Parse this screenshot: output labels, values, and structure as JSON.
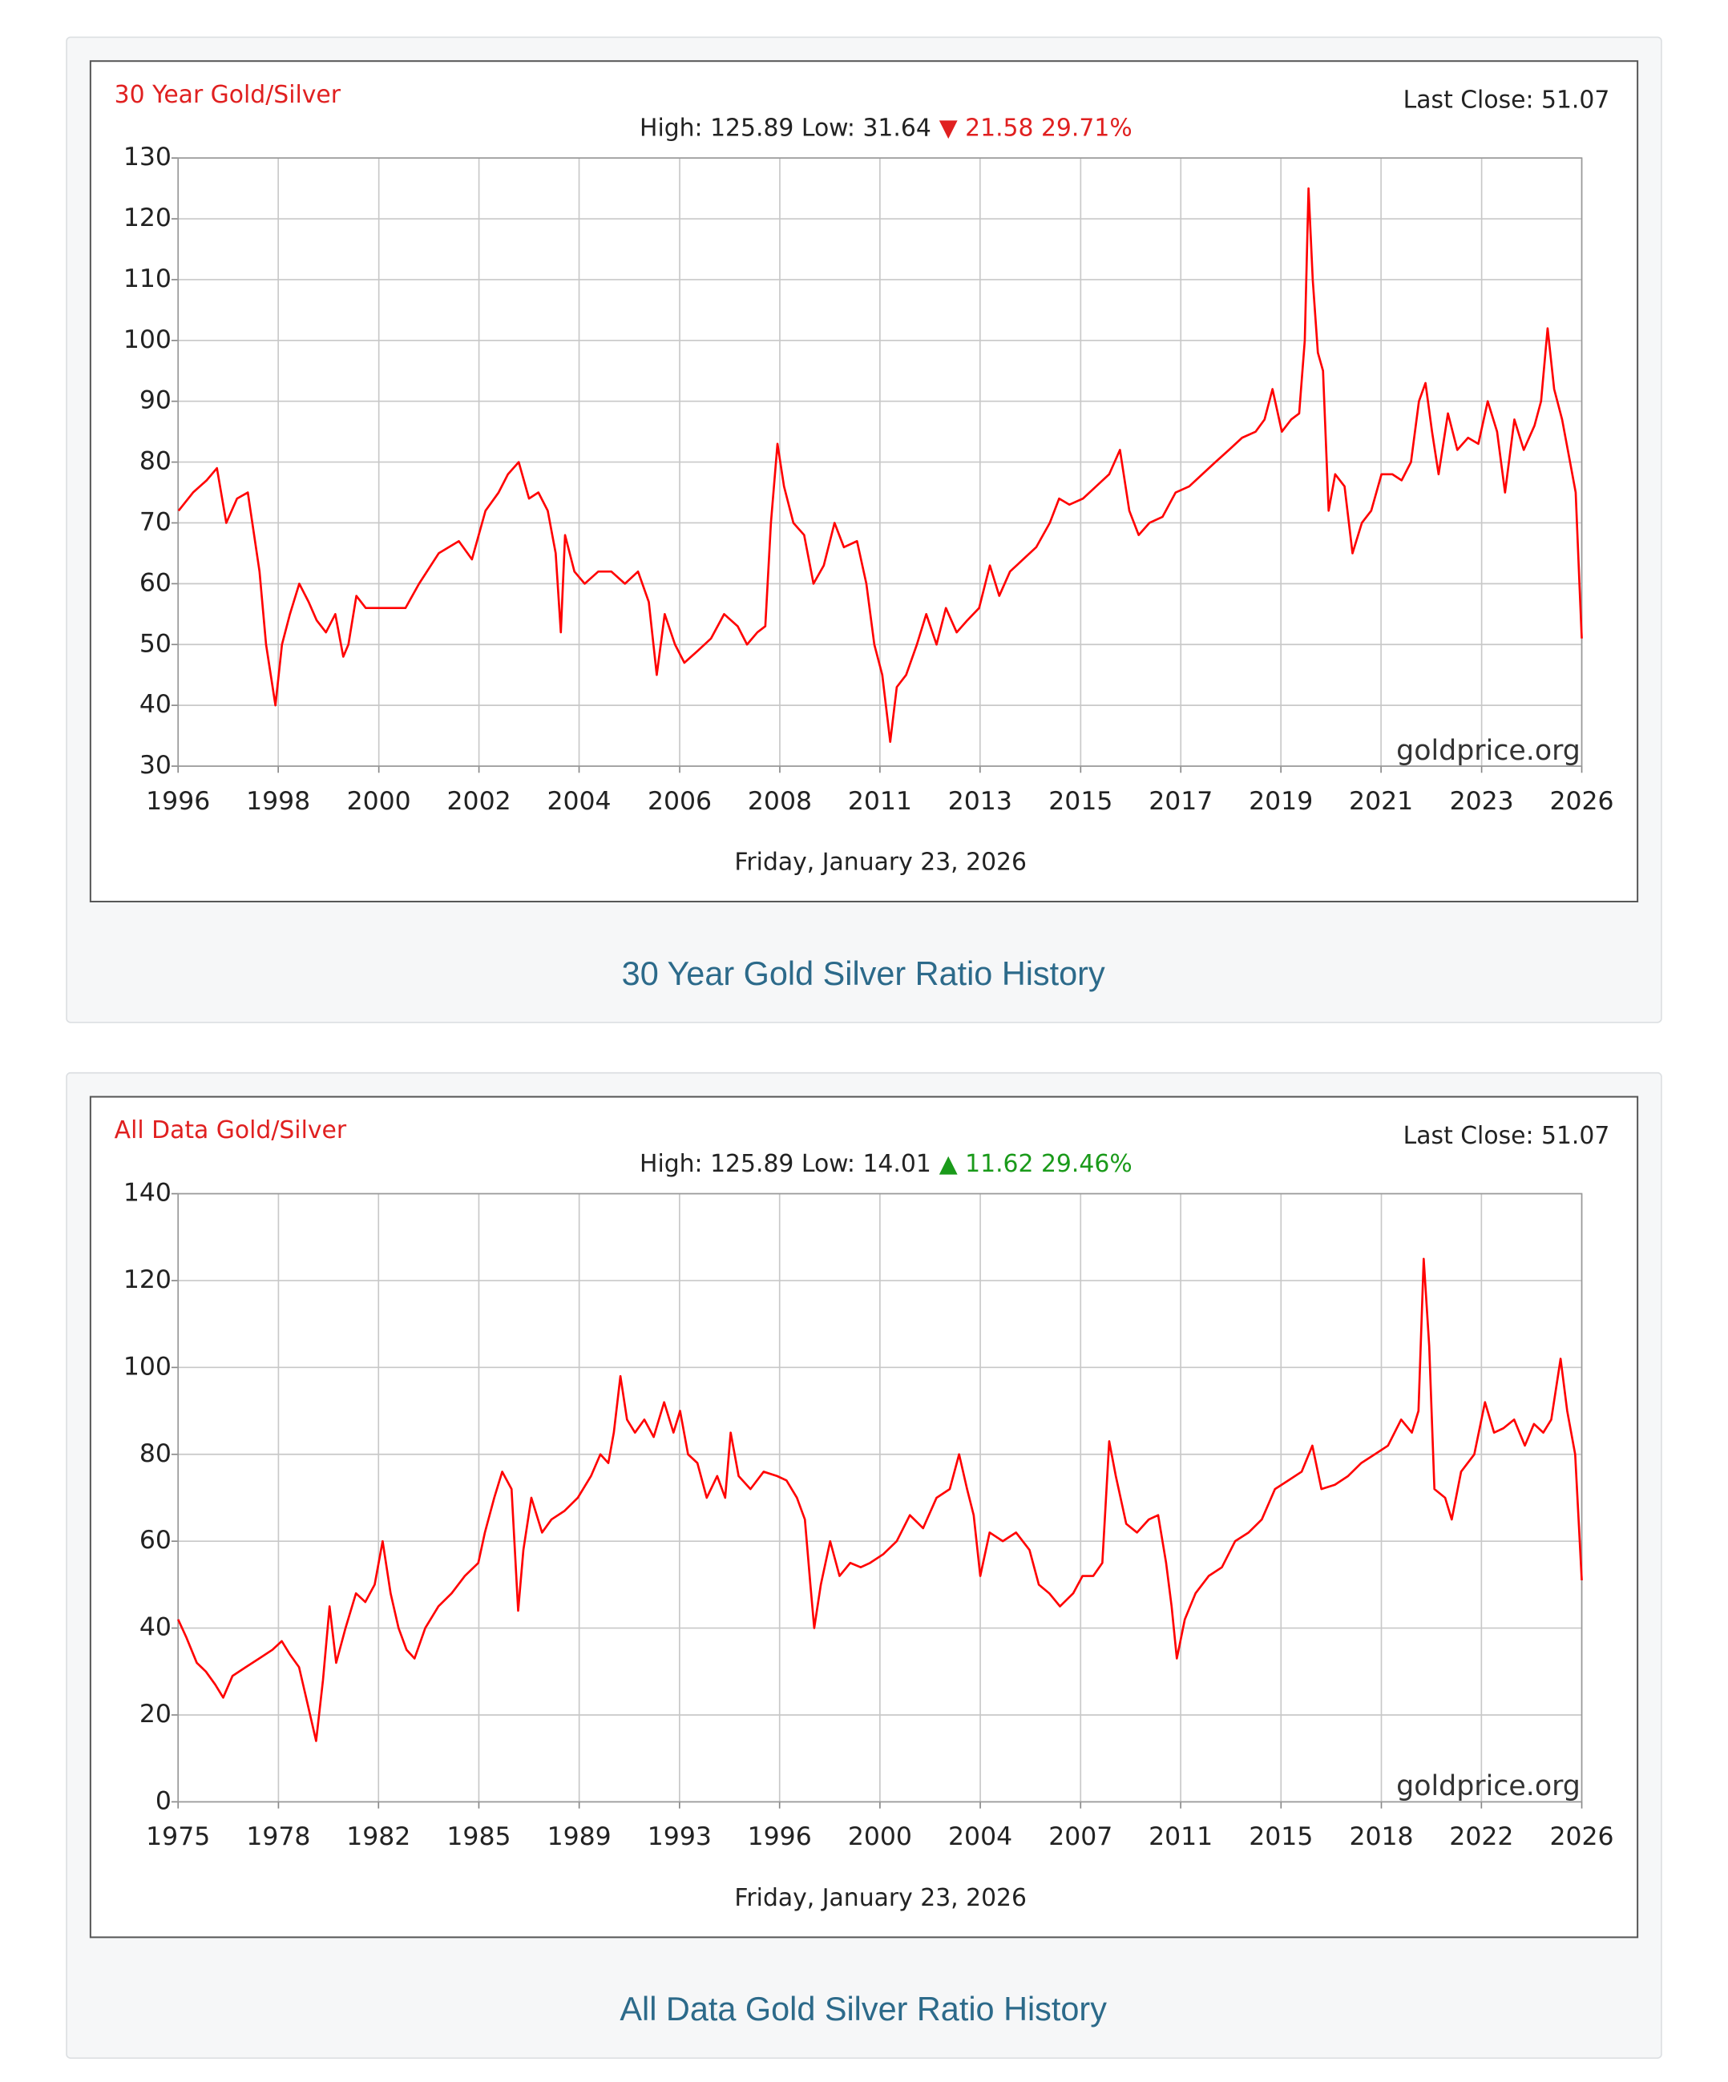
{
  "chart_data": [
    {
      "type": "line",
      "title": "30 Year Gold/Silver",
      "last_close": "Last Close: 51.07",
      "stats": "High: 125.89 Low: 31.64",
      "change": "▼ 21.58 29.71%",
      "change_color": "#e02020",
      "watermark": "goldprice.org",
      "date": "Friday, January 23, 2026",
      "caption": "30 Year Gold Silver Ratio History",
      "color": "#ff0000",
      "grid": true,
      "xlim": [
        1996.06,
        2026.06
      ],
      "ylim": [
        30,
        130
      ],
      "yticks": [
        30,
        40,
        50,
        60,
        70,
        80,
        90,
        100,
        110,
        120,
        130
      ],
      "xticks": [
        {
          "value": 1996.06,
          "label": "1996"
        },
        {
          "value": 1998.2,
          "label": "1998"
        },
        {
          "value": 2000.35,
          "label": "2000"
        },
        {
          "value": 2002.49,
          "label": "2002"
        },
        {
          "value": 2004.63,
          "label": "2004"
        },
        {
          "value": 2006.78,
          "label": "2006"
        },
        {
          "value": 2008.92,
          "label": "2008"
        },
        {
          "value": 2011.06,
          "label": "2011"
        },
        {
          "value": 2013.2,
          "label": "2013"
        },
        {
          "value": 2015.35,
          "label": "2015"
        },
        {
          "value": 2017.49,
          "label": "2017"
        },
        {
          "value": 2019.63,
          "label": "2019"
        },
        {
          "value": 2021.77,
          "label": "2021"
        },
        {
          "value": 2023.92,
          "label": "2023"
        },
        {
          "value": 2026.06,
          "label": "2026"
        }
      ],
      "x": [
        1996.07,
        1996.38,
        1996.67,
        1996.89,
        1997.09,
        1997.32,
        1997.55,
        1997.8,
        1997.94,
        1998.14,
        1998.28,
        1998.45,
        1998.65,
        1998.85,
        1999.02,
        1999.22,
        1999.42,
        1999.59,
        1999.7,
        1999.87,
        2000.07,
        2000.5,
        2000.92,
        2001.21,
        2001.63,
        2002.06,
        2002.34,
        2002.63,
        2002.91,
        2003.11,
        2003.34,
        2003.56,
        2003.76,
        2003.96,
        2004.13,
        2004.24,
        2004.33,
        2004.53,
        2004.75,
        2005.04,
        2005.32,
        2005.61,
        2005.89,
        2006.12,
        2006.29,
        2006.46,
        2006.68,
        2006.88,
        2007.17,
        2007.45,
        2007.73,
        2008.02,
        2008.22,
        2008.44,
        2008.61,
        2008.73,
        2008.87,
        2009.01,
        2009.21,
        2009.44,
        2009.64,
        2009.86,
        2010.09,
        2010.29,
        2010.57,
        2010.77,
        2010.94,
        2011.11,
        2011.28,
        2011.42,
        2011.62,
        2011.85,
        2012.05,
        2012.27,
        2012.47,
        2012.7,
        2012.93,
        2013.18,
        2013.41,
        2013.61,
        2013.84,
        2014.12,
        2014.4,
        2014.69,
        2014.89,
        2015.11,
        2015.4,
        2015.68,
        2015.96,
        2016.19,
        2016.39,
        2016.59,
        2016.82,
        2017.1,
        2017.38,
        2017.67,
        2017.95,
        2018.23,
        2018.52,
        2018.8,
        2019.09,
        2019.28,
        2019.45,
        2019.65,
        2019.85,
        2020.02,
        2020.14,
        2020.22,
        2020.31,
        2020.42,
        2020.53,
        2020.65,
        2020.79,
        2020.99,
        2021.16,
        2021.36,
        2021.56,
        2021.78,
        2022.01,
        2022.21,
        2022.41,
        2022.58,
        2022.72,
        2022.86,
        2023.0,
        2023.2,
        2023.4,
        2023.63,
        2023.85,
        2024.05,
        2024.25,
        2024.42,
        2024.62,
        2024.82,
        2025.05,
        2025.19,
        2025.33,
        2025.47,
        2025.64,
        2025.81,
        2025.93,
        2026.01,
        2026.06
      ],
      "values": [
        72,
        75,
        77,
        79,
        70,
        74,
        75,
        62,
        50,
        40,
        50,
        55,
        60,
        57,
        54,
        52,
        55,
        48,
        50,
        58,
        56,
        56,
        56,
        60,
        65,
        67,
        64,
        72,
        75,
        78,
        80,
        74,
        75,
        72,
        65,
        52,
        68,
        62,
        60,
        62,
        62,
        60,
        62,
        57,
        45,
        55,
        50,
        47,
        49,
        51,
        55,
        53,
        50,
        52,
        53,
        70,
        83,
        76,
        70,
        68,
        60,
        63,
        70,
        66,
        67,
        60,
        50,
        45,
        34,
        43,
        45,
        50,
        55,
        50,
        56,
        52,
        54,
        56,
        63,
        58,
        62,
        64,
        66,
        70,
        74,
        73,
        74,
        76,
        78,
        82,
        72,
        68,
        70,
        71,
        75,
        76,
        78,
        80,
        82,
        84,
        85,
        87,
        92,
        85,
        87,
        88,
        100,
        125,
        110,
        98,
        95,
        72,
        78,
        76,
        65,
        70,
        72,
        78,
        78,
        77,
        80,
        90,
        93,
        85,
        78,
        88,
        82,
        84,
        83,
        90,
        85,
        75,
        87,
        82,
        86,
        90,
        102,
        92,
        87,
        80,
        75,
        60,
        51
      ]
    },
    {
      "type": "line",
      "title": "All Data Gold/Silver",
      "last_close": "Last Close: 51.07",
      "stats": "High: 125.89 Low: 14.01",
      "change": "▲ 11.62 29.46%",
      "change_color": "#1a9a1a",
      "watermark": "goldprice.org",
      "date": "Friday, January 23, 2026",
      "caption": "All Data Gold Silver Ratio History",
      "color": "#ff0000",
      "grid": true,
      "xlim": [
        1975.0,
        2026.06
      ],
      "ylim": [
        0,
        140
      ],
      "yticks": [
        0,
        20,
        40,
        60,
        80,
        100,
        120,
        140
      ],
      "xticks": [
        {
          "value": 1975.0,
          "label": "1975"
        },
        {
          "value": 1978.65,
          "label": "1978"
        },
        {
          "value": 1982.29,
          "label": "1982"
        },
        {
          "value": 1985.94,
          "label": "1985"
        },
        {
          "value": 1989.59,
          "label": "1989"
        },
        {
          "value": 1993.24,
          "label": "1993"
        },
        {
          "value": 1996.88,
          "label": "1996"
        },
        {
          "value": 2000.53,
          "label": "2000"
        },
        {
          "value": 2004.18,
          "label": "2004"
        },
        {
          "value": 2007.83,
          "label": "2007"
        },
        {
          "value": 2011.47,
          "label": "2011"
        },
        {
          "value": 2015.12,
          "label": "2015"
        },
        {
          "value": 2018.77,
          "label": "2018"
        },
        {
          "value": 2022.41,
          "label": "2022"
        },
        {
          "value": 2026.06,
          "label": "2026"
        }
      ],
      "x": [
        1975.0,
        1975.29,
        1975.68,
        1976.01,
        1976.35,
        1976.64,
        1976.98,
        1977.46,
        1977.95,
        1978.43,
        1978.77,
        1979.06,
        1979.4,
        1979.73,
        1980.02,
        1980.27,
        1980.51,
        1980.75,
        1981.09,
        1981.47,
        1981.81,
        1982.15,
        1982.44,
        1982.73,
        1983.02,
        1983.31,
        1983.6,
        1983.99,
        1984.47,
        1984.95,
        1985.43,
        1985.92,
        1986.16,
        1986.5,
        1986.79,
        1987.13,
        1987.37,
        1987.56,
        1987.85,
        1988.24,
        1988.58,
        1989.06,
        1989.54,
        1990.02,
        1990.36,
        1990.65,
        1990.85,
        1991.09,
        1991.33,
        1991.62,
        1991.96,
        1992.3,
        1992.68,
        1993.02,
        1993.26,
        1993.55,
        1993.89,
        1994.23,
        1994.61,
        1994.9,
        1995.1,
        1995.39,
        1995.82,
        1996.3,
        1996.79,
        1997.13,
        1997.51,
        1997.8,
        1998.0,
        1998.14,
        1998.38,
        1998.72,
        1999.06,
        1999.45,
        1999.83,
        2000.17,
        2000.65,
        2001.14,
        2001.62,
        2002.1,
        2002.59,
        2003.07,
        2003.41,
        2003.7,
        2003.94,
        2004.18,
        2004.52,
        2005.0,
        2005.48,
        2005.97,
        2006.31,
        2006.69,
        2007.08,
        2007.56,
        2007.9,
        2008.29,
        2008.62,
        2008.87,
        2009.11,
        2009.49,
        2009.88,
        2010.31,
        2010.65,
        2010.94,
        2011.14,
        2011.33,
        2011.62,
        2012.01,
        2012.49,
        2012.97,
        2013.45,
        2013.94,
        2014.42,
        2014.9,
        2015.39,
        2015.87,
        2016.26,
        2016.59,
        2017.08,
        2017.56,
        2018.04,
        2018.53,
        2019.01,
        2019.49,
        2019.88,
        2020.12,
        2020.31,
        2020.51,
        2020.7,
        2021.09,
        2021.33,
        2021.67,
        2022.15,
        2022.54,
        2022.87,
        2023.21,
        2023.6,
        2023.99,
        2024.32,
        2024.66,
        2024.95,
        2025.29,
        2025.53,
        2025.82,
        2026.06
      ],
      "values": [
        42,
        38,
        32,
        30,
        27,
        24,
        29,
        31,
        33,
        35,
        37,
        34,
        31,
        22,
        14,
        28,
        45,
        32,
        40,
        48,
        46,
        50,
        60,
        48,
        40,
        35,
        33,
        40,
        45,
        48,
        52,
        55,
        62,
        70,
        76,
        72,
        44,
        58,
        70,
        62,
        65,
        67,
        70,
        75,
        80,
        78,
        85,
        98,
        88,
        85,
        88,
        84,
        92,
        85,
        90,
        80,
        78,
        70,
        75,
        70,
        85,
        75,
        72,
        76,
        75,
        74,
        70,
        65,
        50,
        40,
        50,
        60,
        52,
        55,
        54,
        55,
        57,
        60,
        66,
        63,
        70,
        72,
        80,
        72,
        66,
        52,
        62,
        60,
        62,
        58,
        50,
        48,
        45,
        48,
        52,
        52,
        55,
        83,
        75,
        64,
        62,
        65,
        66,
        55,
        45,
        33,
        42,
        48,
        52,
        54,
        60,
        62,
        65,
        72,
        74,
        76,
        82,
        72,
        73,
        75,
        78,
        80,
        82,
        88,
        85,
        90,
        125,
        105,
        72,
        70,
        65,
        76,
        80,
        92,
        85,
        86,
        88,
        82,
        87,
        85,
        88,
        102,
        90,
        80,
        51
      ]
    }
  ]
}
